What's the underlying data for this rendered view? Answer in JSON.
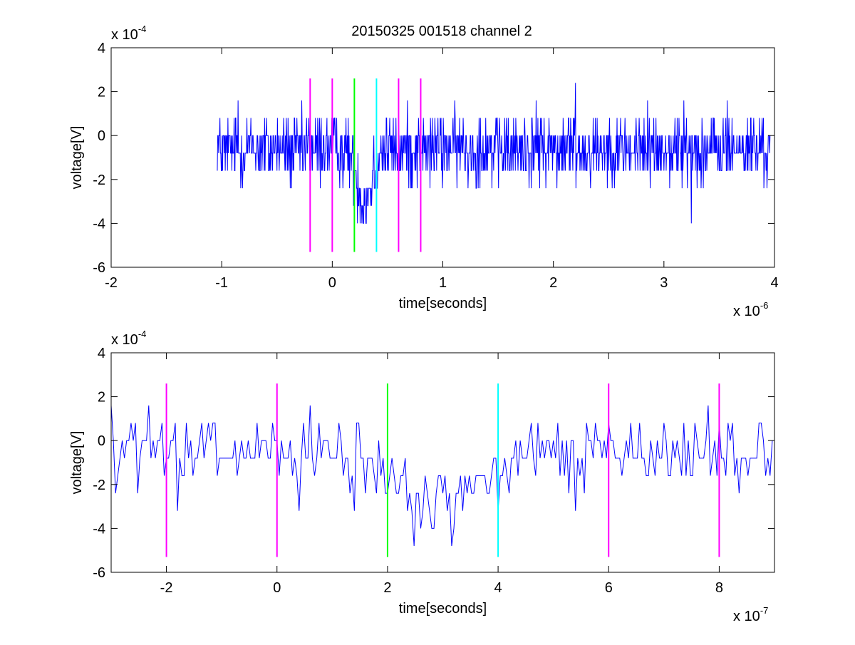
{
  "figure": {
    "title": "20150325 001518 channel 2"
  },
  "colors": {
    "signal": "#0000ff",
    "marker_magenta": "#ff00ff",
    "marker_green": "#00ff00",
    "marker_cyan": "#00ffff",
    "axes": "#000000"
  },
  "chart_data": [
    {
      "type": "line",
      "title": "20150325 001518 channel 2",
      "xlabel": "time[seconds]",
      "ylabel": "voltage[V]",
      "x_exponent_label": "x 10",
      "x_exponent": "-6",
      "y_exponent_label": "x 10",
      "y_exponent": "-4",
      "xlim": [
        -2e-06,
        4e-06
      ],
      "ylim": [
        -0.0006,
        0.0004
      ],
      "xticks": [
        -2e-06,
        -1e-06,
        0,
        1e-06,
        2e-06,
        3e-06,
        4e-06
      ],
      "xtick_labels": [
        "-2",
        "-1",
        "0",
        "1",
        "2",
        "3",
        "4"
      ],
      "yticks": [
        -0.0006,
        -0.0004,
        -0.0002,
        0,
        0.0002,
        0.0004
      ],
      "ytick_labels": [
        "-6",
        "-4",
        "-2",
        "0",
        "2",
        "4"
      ],
      "grid": false,
      "series": [
        {
          "color": "#0000ff",
          "sampling": {
            "x_start": -1.04e-06,
            "x_end": 3.96e-06,
            "step": 4e-09,
            "quantum": 8e-05,
            "pattern": "noisy voltage around -0.5e-4 with a dip to about -3e-4 between 0.2e-6 and 0.45e-6"
          },
          "keypoints": [
            {
              "x": -1.04e-06,
              "y": -0.00016
            },
            {
              "x": -8.5e-07,
              "y": 0.00016
            },
            {
              "x": -2e-07,
              "y": -8e-05
            },
            {
              "x": 2e-07,
              "y": -0.00024
            },
            {
              "x": 2.8e-07,
              "y": -0.0004
            },
            {
              "x": 4.5e-07,
              "y": -8e-05
            },
            {
              "x": 1.5e-06,
              "y": -8e-05
            },
            {
              "x": 2.2e-06,
              "y": 0.00024
            },
            {
              "x": 3.25e-06,
              "y": -0.0004
            },
            {
              "x": 3.96e-06,
              "y": 0
            }
          ]
        }
      ],
      "vlines": [
        {
          "x": -2e-07,
          "color": "#ff00ff",
          "y_range": [
            -0.00053,
            0.00026
          ]
        },
        {
          "x": 0,
          "color": "#ff00ff",
          "y_range": [
            -0.00053,
            0.00026
          ]
        },
        {
          "x": 2e-07,
          "color": "#00ff00",
          "y_range": [
            -0.00053,
            0.00026
          ]
        },
        {
          "x": 4e-07,
          "color": "#00ffff",
          "y_range": [
            -0.00053,
            0.00026
          ]
        },
        {
          "x": 6e-07,
          "color": "#ff00ff",
          "y_range": [
            -0.00053,
            0.00026
          ]
        },
        {
          "x": 8e-07,
          "color": "#ff00ff",
          "y_range": [
            -0.00053,
            0.00026
          ]
        }
      ]
    },
    {
      "type": "line",
      "xlabel": "time[seconds]",
      "ylabel": "voltage[V]",
      "x_exponent_label": "x 10",
      "x_exponent": "-7",
      "y_exponent_label": "x 10",
      "y_exponent": "-4",
      "xlim": [
        -3e-07,
        9e-07
      ],
      "ylim": [
        -0.0006,
        0.0004
      ],
      "xticks": [
        -2e-07,
        0,
        2e-07,
        4e-07,
        6e-07,
        8e-07
      ],
      "xtick_labels": [
        "-2",
        "0",
        "2",
        "4",
        "6",
        "8"
      ],
      "yticks": [
        -0.0006,
        -0.0004,
        -0.0002,
        0,
        0.0002,
        0.0004
      ],
      "ytick_labels": [
        "-6",
        "-4",
        "-2",
        "0",
        "2",
        "4"
      ],
      "grid": false,
      "series": [
        {
          "color": "#0000ff",
          "sampling": {
            "x_start": -3e-07,
            "x_end": 9e-07,
            "step": 4e-09,
            "quantum": 8e-05,
            "pattern": "zoomed view of the same trace; dip to about -4.8e-4 near 2.5e-7"
          },
          "keypoints": [
            {
              "x": -3e-07,
              "y": 0.00016
            },
            {
              "x": -2.9e-07,
              "y": -0.00024
            },
            {
              "x": -2.3e-07,
              "y": 0.00016
            },
            {
              "x": -1.8e-07,
              "y": -0.00032
            },
            {
              "x": 0,
              "y": 0
            },
            {
              "x": 4e-08,
              "y": -0.00032
            },
            {
              "x": 1.4e-07,
              "y": -0.00032
            },
            {
              "x": 2.5e-07,
              "y": -0.00048
            },
            {
              "x": 4e-07,
              "y": -0.00032
            },
            {
              "x": 5.4e-07,
              "y": -0.00032
            },
            {
              "x": 6e-07,
              "y": 8e-05
            },
            {
              "x": 7.8e-07,
              "y": 0.00016
            },
            {
              "x": 9e-07,
              "y": -5e-05
            }
          ]
        }
      ],
      "vlines": [
        {
          "x": -2e-07,
          "color": "#ff00ff",
          "y_range": [
            -0.00053,
            0.00026
          ]
        },
        {
          "x": 0,
          "color": "#ff00ff",
          "y_range": [
            -0.00053,
            0.00026
          ]
        },
        {
          "x": 2e-07,
          "color": "#00ff00",
          "y_range": [
            -0.00053,
            0.00026
          ]
        },
        {
          "x": 4e-07,
          "color": "#00ffff",
          "y_range": [
            -0.00053,
            0.00026
          ]
        },
        {
          "x": 6e-07,
          "color": "#ff00ff",
          "y_range": [
            -0.00053,
            0.00026
          ]
        },
        {
          "x": 8e-07,
          "color": "#ff00ff",
          "y_range": [
            -0.00053,
            0.00026
          ]
        }
      ]
    }
  ]
}
